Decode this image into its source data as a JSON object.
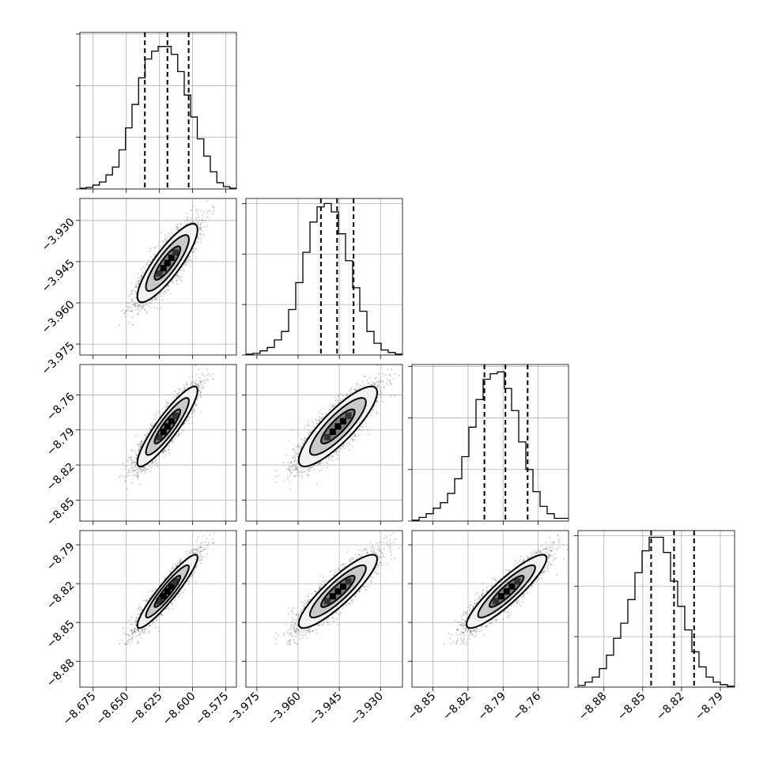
{
  "chart_data": {
    "type": "corner",
    "title": "",
    "grid": true,
    "legend": "none",
    "parameters": [
      {
        "range": [
          -8.685,
          -8.567
        ],
        "ticks": [
          -8.675,
          -8.65,
          -8.625,
          -8.6,
          -8.575
        ],
        "tick_labels": [
          "−8.675",
          "−8.650",
          "−8.625",
          "−8.600",
          "−8.575"
        ],
        "quantiles": [
          -8.636,
          -8.619,
          -8.603
        ],
        "hist": [
          0.5,
          1,
          2.5,
          4.5,
          9,
          14,
          25,
          39,
          54,
          71,
          83,
          88,
          91,
          91,
          86,
          75,
          60,
          46,
          32,
          21,
          11,
          4,
          1.5,
          0.5
        ],
        "hist_ylim": [
          0,
          100
        ],
        "hist_yticks": [
          0,
          33,
          66,
          99
        ]
      },
      {
        "range": [
          -3.979,
          -3.922
        ],
        "ticks": [
          -3.975,
          -3.96,
          -3.945,
          -3.93
        ],
        "tick_labels": [
          "−3.975",
          "−3.960",
          "−3.945",
          "−3.930"
        ],
        "quantiles": [
          -3.9517,
          -3.9458,
          -3.9398
        ],
        "hist": [
          0.5,
          1,
          2.5,
          4.5,
          9,
          14,
          27,
          43,
          61,
          79,
          88,
          90,
          85,
          72,
          56,
          40,
          26,
          14,
          7,
          3,
          1.5,
          0.5
        ],
        "hist_ylim": [
          0,
          93
        ],
        "hist_yticks": [
          0,
          30,
          60,
          90
        ]
      },
      {
        "range": [
          -8.868,
          -8.734
        ],
        "ticks": [
          -8.85,
          -8.82,
          -8.79,
          -8.76
        ],
        "tick_labels": [
          "−8.85",
          "−8.82",
          "−8.79",
          "−8.76"
        ],
        "quantiles": [
          -8.806,
          -8.788,
          -8.769
        ],
        "hist": [
          0.5,
          2,
          4,
          7,
          10,
          15,
          23,
          35,
          51,
          66,
          77,
          80,
          81,
          72,
          60,
          43,
          28,
          16,
          8,
          4,
          1.5,
          1.5
        ],
        "hist_ylim": [
          0,
          85
        ],
        "hist_yticks": [
          0,
          28,
          56,
          84
        ]
      },
      {
        "range": [
          -8.9,
          -8.779
        ],
        "ticks": [
          -8.88,
          -8.85,
          -8.82,
          -8.79
        ],
        "tick_labels": [
          "−8.88",
          "−8.85",
          "−8.82",
          "−8.79"
        ],
        "quantiles": [
          -8.8435,
          -8.8258,
          -8.8103
        ],
        "hist": [
          1,
          3,
          6,
          11,
          19,
          29,
          38,
          52,
          68,
          81,
          89,
          89,
          80,
          63,
          48,
          34,
          21,
          12,
          6,
          3,
          1.5,
          0.5
        ],
        "hist_ylim": [
          0,
          93
        ],
        "hist_yticks": [
          0,
          30,
          60,
          90
        ]
      }
    ],
    "samples": {
      "means": [
        -8.619,
        -3.9455,
        -8.787,
        -8.826
      ],
      "sigmas": [
        0.0108,
        0.0068,
        0.0163,
        0.0135
      ],
      "correlation": [
        [
          1.0,
          0.85,
          0.9,
          0.93
        ],
        [
          0.85,
          1.0,
          0.85,
          0.88
        ],
        [
          0.9,
          0.85,
          1.0,
          0.9
        ],
        [
          0.93,
          0.88,
          0.9,
          1.0
        ]
      ]
    }
  }
}
